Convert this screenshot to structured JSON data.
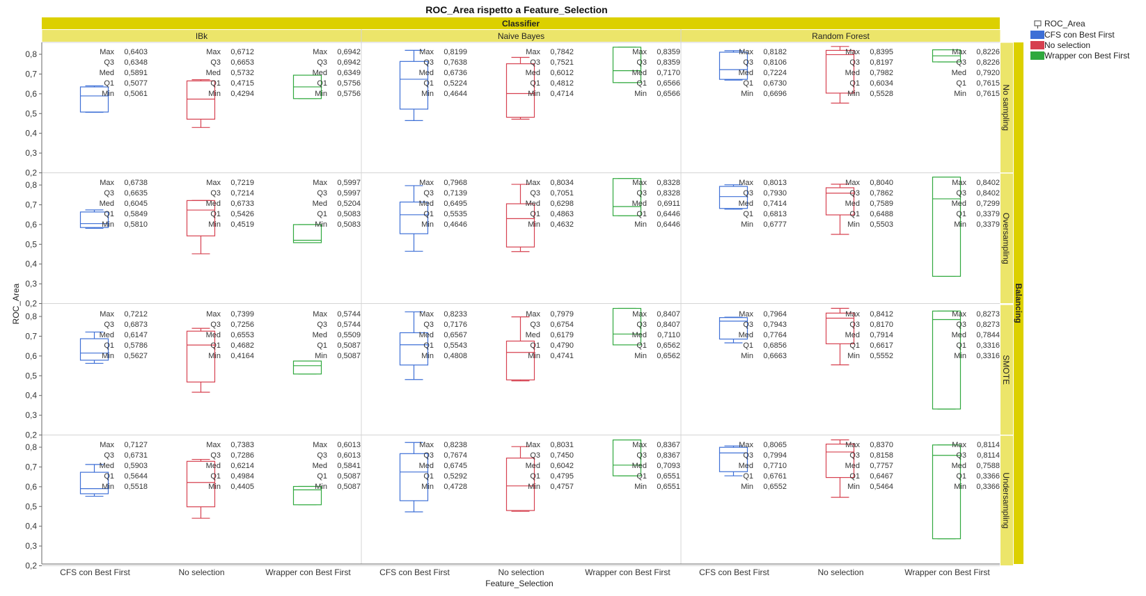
{
  "chart_data": {
    "type": "box",
    "title": "ROC_Area rispetto a Feature_Selection",
    "xlabel": "Feature_Selection",
    "ylabel": "ROC_Area",
    "column_group_label": "Classifier",
    "row_group_label": "Balancing",
    "classifiers": [
      "IBk",
      "Naive Bayes",
      "Random Forest"
    ],
    "balancing": [
      "No sampling",
      "Oversampling",
      "SMOTE",
      "Undersampling"
    ],
    "categories": [
      "CFS con Best First",
      "No selection",
      "Wrapper con Best First"
    ],
    "y_ticks": [
      "0,2",
      "0,3",
      "0,4",
      "0,5",
      "0,6",
      "0,7",
      "0,8"
    ],
    "ylim": [
      0.2,
      0.86
    ],
    "stat_labels": [
      "Max",
      "Q3",
      "Med",
      "Q1",
      "Min"
    ],
    "legend": {
      "title": "ROC_Area",
      "position": "top-right",
      "entries": [
        {
          "label": "CFS con Best First",
          "color": "#3d6fd6"
        },
        {
          "label": "No selection",
          "color": "#d6404f"
        },
        {
          "label": "Wrapper con Best First",
          "color": "#2fa83d"
        }
      ]
    },
    "colors": {
      "CFS con Best First": "#3d6fd6",
      "No selection": "#d6404f",
      "Wrapper con Best First": "#2fa83d",
      "header_dark": "#dcd000",
      "header_light": "#ece56a"
    },
    "boxes": [
      [
        [
          {
            "max": "0,6403",
            "q3": "0,6348",
            "med": "0,5891",
            "q1": "0,5077",
            "min": "0,5061"
          },
          {
            "max": "0,6712",
            "q3": "0,6653",
            "med": "0,5732",
            "q1": "0,4715",
            "min": "0,4294"
          },
          {
            "max": "0,6942",
            "q3": "0,6942",
            "med": "0,6349",
            "q1": "0,5756",
            "min": "0,5756"
          }
        ],
        [
          {
            "max": "0,8199",
            "q3": "0,7638",
            "med": "0,6736",
            "q1": "0,5224",
            "min": "0,4644"
          },
          {
            "max": "0,7842",
            "q3": "0,7521",
            "med": "0,6012",
            "q1": "0,4812",
            "min": "0,4714"
          },
          {
            "max": "0,8359",
            "q3": "0,8359",
            "med": "0,7170",
            "q1": "0,6566",
            "min": "0,6566"
          }
        ],
        [
          {
            "max": "0,8182",
            "q3": "0,8106",
            "med": "0,7224",
            "q1": "0,6730",
            "min": "0,6696"
          },
          {
            "max": "0,8395",
            "q3": "0,8197",
            "med": "0,7982",
            "q1": "0,6034",
            "min": "0,5528"
          },
          {
            "max": "0,8226",
            "q3": "0,8226",
            "med": "0,7920",
            "q1": "0,7615",
            "min": "0,7615"
          }
        ]
      ],
      [
        [
          {
            "max": "0,6738",
            "q3": "0,6635",
            "med": "0,6045",
            "q1": "0,5849",
            "min": "0,5810"
          },
          {
            "max": "0,7219",
            "q3": "0,7214",
            "med": "0,6733",
            "q1": "0,5426",
            "min": "0,4519"
          },
          {
            "max": "0,5997",
            "q3": "0,5997",
            "med": "0,5204",
            "q1": "0,5083",
            "min": "0,5083"
          }
        ],
        [
          {
            "max": "0,7968",
            "q3": "0,7139",
            "med": "0,6495",
            "q1": "0,5535",
            "min": "0,4646"
          },
          {
            "max": "0,8034",
            "q3": "0,7051",
            "med": "0,6298",
            "q1": "0,4863",
            "min": "0,4632"
          },
          {
            "max": "0,8328",
            "q3": "0,8328",
            "med": "0,6911",
            "q1": "0,6446",
            "min": "0,6446"
          }
        ],
        [
          {
            "max": "0,8013",
            "q3": "0,7930",
            "med": "0,7414",
            "q1": "0,6813",
            "min": "0,6777"
          },
          {
            "max": "0,8040",
            "q3": "0,7862",
            "med": "0,7589",
            "q1": "0,6488",
            "min": "0,5503"
          },
          {
            "max": "0,8402",
            "q3": "0,8402",
            "med": "0,7299",
            "q1": "0,3379",
            "min": "0,3379"
          }
        ]
      ],
      [
        [
          {
            "max": "0,7212",
            "q3": "0,6873",
            "med": "0,6147",
            "q1": "0,5786",
            "min": "0,5627"
          },
          {
            "max": "0,7399",
            "q3": "0,7256",
            "med": "0,6553",
            "q1": "0,4682",
            "min": "0,4164"
          },
          {
            "max": "0,5744",
            "q3": "0,5744",
            "med": "0,5509",
            "q1": "0,5087",
            "min": "0,5087"
          }
        ],
        [
          {
            "max": "0,8233",
            "q3": "0,7176",
            "med": "0,6567",
            "q1": "0,5543",
            "min": "0,4808"
          },
          {
            "max": "0,7979",
            "q3": "0,6754",
            "med": "0,6179",
            "q1": "0,4790",
            "min": "0,4741"
          },
          {
            "max": "0,8407",
            "q3": "0,8407",
            "med": "0,7110",
            "q1": "0,6562",
            "min": "0,6562"
          }
        ],
        [
          {
            "max": "0,7964",
            "q3": "0,7943",
            "med": "0,7764",
            "q1": "0,6856",
            "min": "0,6663"
          },
          {
            "max": "0,8412",
            "q3": "0,8170",
            "med": "0,7914",
            "q1": "0,6617",
            "min": "0,5552"
          },
          {
            "max": "0,8273",
            "q3": "0,8273",
            "med": "0,7844",
            "q1": "0,3316",
            "min": "0,3316"
          }
        ]
      ],
      [
        [
          {
            "max": "0,7127",
            "q3": "0,6731",
            "med": "0,5903",
            "q1": "0,5644",
            "min": "0,5518"
          },
          {
            "max": "0,7383",
            "q3": "0,7286",
            "med": "0,6214",
            "q1": "0,4984",
            "min": "0,4405"
          },
          {
            "max": "0,6013",
            "q3": "0,6013",
            "med": "0,5841",
            "q1": "0,5087",
            "min": "0,5087"
          }
        ],
        [
          {
            "max": "0,8238",
            "q3": "0,7674",
            "med": "0,6745",
            "q1": "0,5292",
            "min": "0,4728"
          },
          {
            "max": "0,8031",
            "q3": "0,7450",
            "med": "0,6042",
            "q1": "0,4795",
            "min": "0,4757"
          },
          {
            "max": "0,8367",
            "q3": "0,8367",
            "med": "0,7093",
            "q1": "0,6551",
            "min": "0,6551"
          }
        ],
        [
          {
            "max": "0,8065",
            "q3": "0,7994",
            "med": "0,7710",
            "q1": "0,6761",
            "min": "0,6552"
          },
          {
            "max": "0,8370",
            "q3": "0,8158",
            "med": "0,7757",
            "q1": "0,6467",
            "min": "0,5464"
          },
          {
            "max": "0,8114",
            "q3": "0,8114",
            "med": "0,7588",
            "q1": "0,3366",
            "min": "0,3366"
          }
        ]
      ]
    ]
  }
}
